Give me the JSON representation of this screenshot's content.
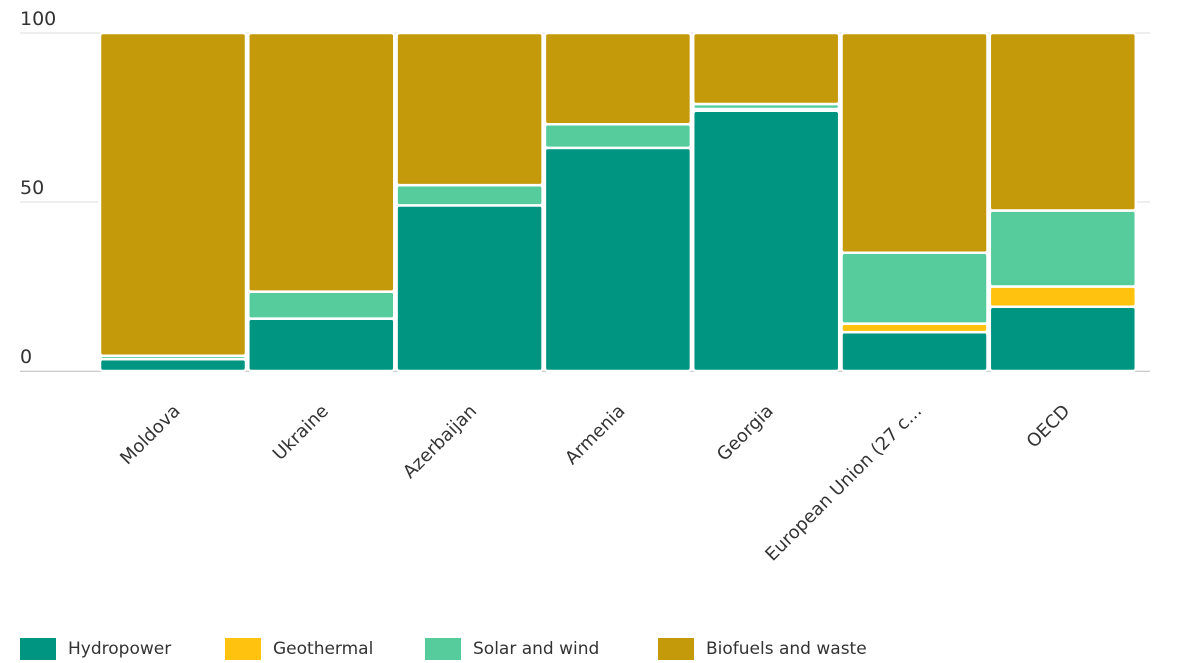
{
  "chart_data": {
    "type": "bar",
    "stacked": true,
    "percent": true,
    "categories": [
      "Moldova",
      "Ukraine",
      "Azerbaijan",
      "Armenia",
      "Georgia",
      "European Union (27 c...",
      "OECD"
    ],
    "series": [
      {
        "name": "Hydropower",
        "color": "#009581",
        "values": [
          3.5,
          15.5,
          49,
          66,
          77,
          11.5,
          19
        ]
      },
      {
        "name": "Geothermal",
        "color": "#ffc20e",
        "values": [
          0,
          0,
          0,
          0,
          0.5,
          2.5,
          6
        ]
      },
      {
        "name": "Solar and wind",
        "color": "#56cc9d",
        "values": [
          1,
          8,
          6,
          7,
          1.5,
          21,
          22.5
        ]
      },
      {
        "name": "Biofuels and waste",
        "color": "#c4990a",
        "values": [
          95.5,
          76.5,
          45,
          27,
          21,
          65,
          52.5
        ]
      }
    ],
    "yticks": [
      0,
      50,
      100
    ],
    "ylim": [
      0,
      100
    ],
    "grid": true,
    "legend_position": "bottom-left"
  }
}
